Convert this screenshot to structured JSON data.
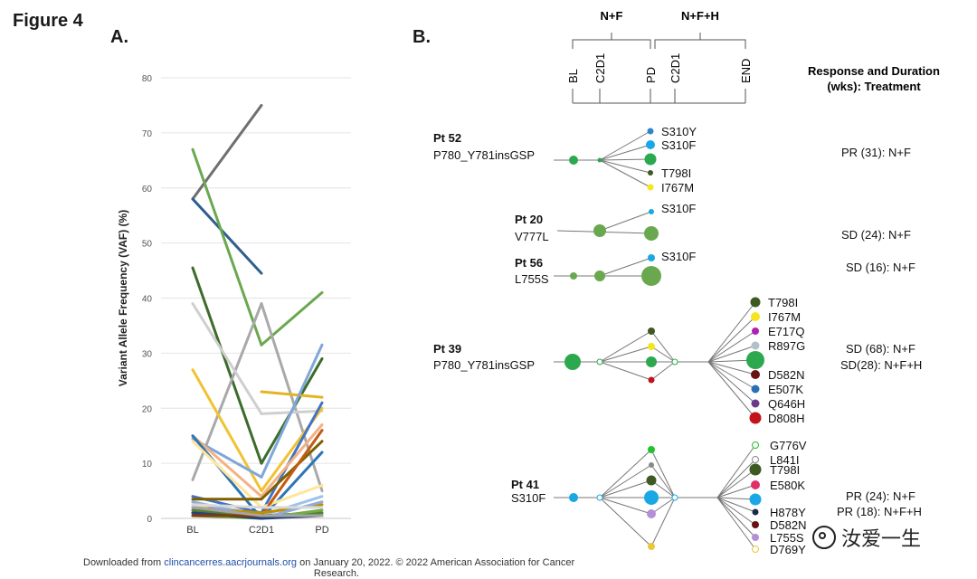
{
  "figure_title": "Figure 4",
  "panel_a": {
    "label": "A."
  },
  "panel_b": {
    "label": "B.",
    "timeline": {
      "group1_label": "N+F",
      "group2_label": "N+F+H",
      "ticks": [
        "BL",
        "C2D1",
        "PD",
        "C2D1",
        "END"
      ]
    },
    "response_header": [
      "Response and Duration",
      "(wks): Treatment"
    ],
    "patients": [
      {
        "name": "Pt 52",
        "baseline": "P780_Y781insGSP",
        "responses": [
          "PR (31): N+F"
        ],
        "mutations": [
          {
            "label": "S310Y",
            "color": "#2e86c9"
          },
          {
            "label": "S310F",
            "color": "#1aa7e6"
          },
          {
            "label": "",
            "color": "#2ca84f"
          },
          {
            "label": "T798I",
            "color": "#3d5a23"
          },
          {
            "label": "I767M",
            "color": "#f5e61b"
          }
        ]
      },
      {
        "name": "Pt 20",
        "baseline": "V777L",
        "responses": [
          "SD (24): N+F"
        ],
        "mutations": [
          {
            "label": "S310F",
            "color": "#1aa7e6"
          }
        ]
      },
      {
        "name": "Pt 56",
        "baseline": "L755S",
        "responses": [
          "SD (16): N+F"
        ],
        "mutations": [
          {
            "label": "S310F",
            "color": "#1aa7e6"
          }
        ]
      },
      {
        "name": "Pt 39",
        "baseline": "P780_Y781insGSP",
        "responses": [
          "SD (68): N+F",
          "SD(28): N+F+H"
        ],
        "mutations": [
          {
            "label": "T798I",
            "color": "#3d5a23"
          },
          {
            "label": "I767M",
            "color": "#f5e61b"
          },
          {
            "label": "E717Q",
            "color": "#b31fb3"
          },
          {
            "label": "R897G",
            "color": "#b5bfcb"
          },
          {
            "label": "",
            "color": "#2ca84f"
          },
          {
            "label": "D582N",
            "color": "#6b1111"
          },
          {
            "label": "E507K",
            "color": "#2a6fb5"
          },
          {
            "label": "Q646H",
            "color": "#6b3a8e"
          },
          {
            "label": "D808H",
            "color": "#c0141a"
          }
        ]
      },
      {
        "name": "Pt 41",
        "baseline": "S310F",
        "responses": [
          "PR (24): N+F",
          "PR (18): N+F+H"
        ],
        "mutations": [
          {
            "label": "G776V",
            "color": "#22c22a"
          },
          {
            "label": "L841I",
            "color": "#888888"
          },
          {
            "label": "T798I",
            "color": "#3d5a23"
          },
          {
            "label": "E580K",
            "color": "#e0306a"
          },
          {
            "label": "",
            "color": "#1aa7e6"
          },
          {
            "label": "H878Y",
            "color": "#1b2a4a"
          },
          {
            "label": "D582N",
            "color": "#6b1111"
          },
          {
            "label": "L755S",
            "color": "#b48fd6"
          },
          {
            "label": "D769Y",
            "color": "#e8c73a"
          }
        ]
      }
    ]
  },
  "footer": {
    "prefix": "Downloaded from ",
    "link": "clincancerres.aacrjournals.org",
    "suffix": " on January 20, 2022. © 2022 American Association for Cancer",
    "line2": "Research."
  },
  "watermark": "汝爱一生",
  "chart_data": {
    "type": "line",
    "title": "",
    "xlabel": "",
    "ylabel": "Variant Allele Frequency (VAF) (%)",
    "categories": [
      "BL",
      "C2D1",
      "PD"
    ],
    "ylim": [
      0,
      80
    ],
    "yticks": [
      0,
      10,
      20,
      30,
      40,
      50,
      60,
      70,
      80
    ],
    "grid": true,
    "series": [
      {
        "name": "s1",
        "color": "#6f6f6f",
        "values": [
          58,
          75,
          null
        ]
      },
      {
        "name": "s2",
        "color": "#2f5f8f",
        "values": [
          58,
          44.5,
          null
        ]
      },
      {
        "name": "s3",
        "color": "#6aa84f",
        "values": [
          67,
          31.5,
          41
        ]
      },
      {
        "name": "s4",
        "color": "#3d6b2a",
        "values": [
          45.5,
          10,
          29
        ]
      },
      {
        "name": "s5",
        "color": "#a9a9a9",
        "values": [
          7,
          39,
          5
        ]
      },
      {
        "name": "s6",
        "color": "#cfcfcf",
        "values": [
          39,
          19,
          19.5
        ]
      },
      {
        "name": "s7",
        "color": "#f1c232",
        "values": [
          27,
          5,
          20
        ]
      },
      {
        "name": "s8",
        "color": "#e6b422",
        "values": [
          null,
          23,
          22
        ]
      },
      {
        "name": "s9",
        "color": "#7fa7d9",
        "values": [
          14.5,
          7.5,
          31.5
        ]
      },
      {
        "name": "s10",
        "color": "#4472c4",
        "values": [
          4,
          1,
          21
        ]
      },
      {
        "name": "s11",
        "color": "#f4b183",
        "values": [
          15,
          4,
          17
        ]
      },
      {
        "name": "s12",
        "color": "#2e75b6",
        "values": [
          15,
          0,
          12
        ]
      },
      {
        "name": "s13",
        "color": "#9dc3e6",
        "values": [
          3,
          0.5,
          4
        ]
      },
      {
        "name": "s14",
        "color": "#ffe699",
        "values": [
          14,
          2,
          6
        ]
      },
      {
        "name": "s15",
        "color": "#7f6000",
        "values": [
          3.5,
          3.5,
          14
        ]
      },
      {
        "name": "s16",
        "color": "#c55a11",
        "values": [
          1,
          0.5,
          16
        ]
      },
      {
        "name": "s17",
        "color": "#bf9000",
        "values": [
          2,
          1,
          2.5
        ]
      },
      {
        "name": "s18",
        "color": "#548235",
        "values": [
          1.5,
          0.5,
          1
        ]
      },
      {
        "name": "s19",
        "color": "#8faadc",
        "values": [
          3,
          0,
          3
        ]
      },
      {
        "name": "s20",
        "color": "#d9d9d9",
        "values": [
          2.5,
          2,
          2
        ]
      },
      {
        "name": "s21",
        "color": "#70ad47",
        "values": [
          0.5,
          0,
          1.5
        ]
      },
      {
        "name": "s22",
        "color": "#264478",
        "values": [
          1,
          0,
          0.5
        ]
      },
      {
        "name": "s23",
        "color": "#843c0c",
        "values": [
          0.5,
          0.5,
          0.5
        ]
      },
      {
        "name": "s24",
        "color": "#a5a5a5",
        "values": [
          2,
          0.5,
          0.5
        ]
      }
    ]
  }
}
